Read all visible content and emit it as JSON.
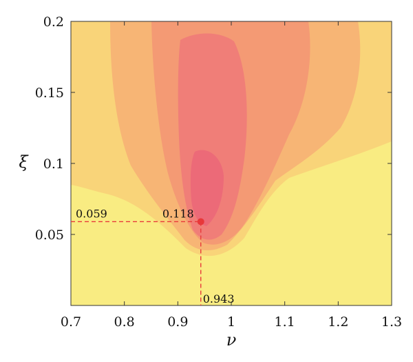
{
  "chart_data": {
    "type": "contour",
    "xlabel": "ν",
    "ylabel": "ξ",
    "xlim": [
      0.7,
      1.3
    ],
    "ylim": [
      0.0,
      0.2
    ],
    "x_ticks": [
      "0.7",
      "0.8",
      "0.9",
      "1",
      "1.1",
      "1.2",
      "1.3"
    ],
    "y_ticks": [
      "0.05",
      "0.1",
      "0.15",
      "0.2"
    ],
    "grid": false,
    "colormap": [
      "#f9ec82",
      "#f9d479",
      "#f7b575",
      "#f49a74",
      "#f07e78",
      "#ec6a78"
    ],
    "highlight_point": {
      "x": 0.943,
      "y": 0.059,
      "value": 0.118,
      "color": "#e8383a"
    },
    "annotations": {
      "x_label": "0.943",
      "y_label": "0.059",
      "value_label": "0.118"
    }
  }
}
